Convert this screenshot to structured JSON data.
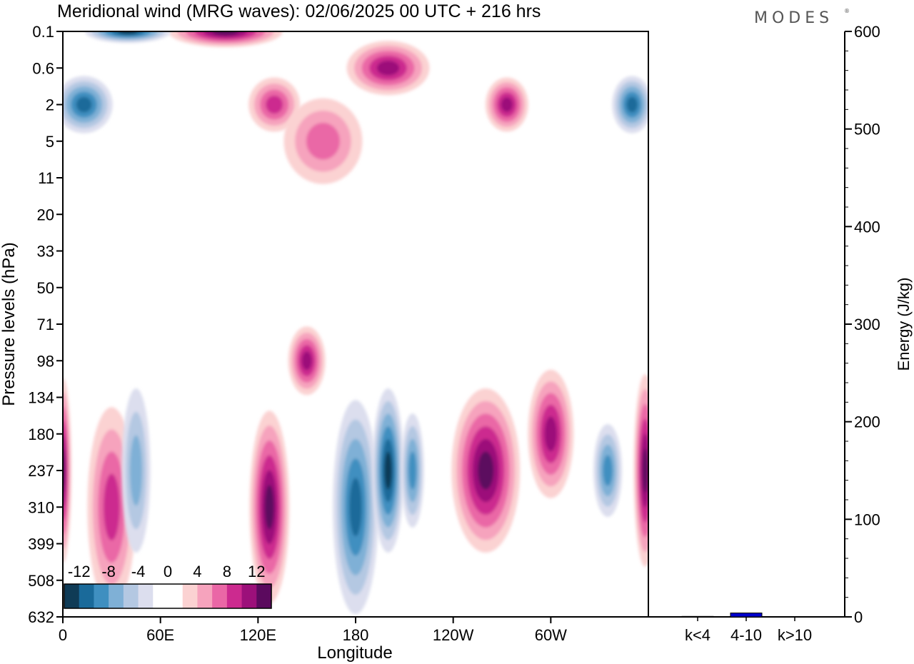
{
  "title": "Meridional wind (MRG waves):  02/06/2025  00 UTC  + 216 hrs",
  "brand": "MODES",
  "brand_mark": "®",
  "chart_data": [
    {
      "type": "heatmap",
      "title": "Meridional wind (MRG waves):  02/06/2025  00 UTC  + 216 hrs",
      "xlabel": "Longitude",
      "ylabel": "Pressure levels (hPa)",
      "x_ticks": [
        "0",
        "60E",
        "120E",
        "180",
        "120W",
        "60W"
      ],
      "y_ticks": [
        "0.1",
        "0.6",
        "2",
        "5",
        "11",
        "20",
        "33",
        "50",
        "71",
        "98",
        "134",
        "180",
        "237",
        "310",
        "399",
        "508",
        "632"
      ],
      "legend": {
        "labels": [
          "-12",
          "-8",
          "-4",
          "0",
          "4",
          "8",
          "12"
        ],
        "colors": [
          "#0f3b56",
          "#1a6a9a",
          "#3f8fc0",
          "#7fb0d6",
          "#b4c8e2",
          "#dcdeee",
          "#ffffff",
          "#ffffff",
          "#fbd2d2",
          "#f6a3bd",
          "#ea67a6",
          "#cc2a8f",
          "#9c107a",
          "#5b0a5e"
        ]
      },
      "features": [
        {
          "lon": 150,
          "level": "98",
          "value": 9
        },
        {
          "lon": 180,
          "level": "310",
          "value": -10
        },
        {
          "lon": 200,
          "level": "237",
          "value": -12
        },
        {
          "lon": 260,
          "level": "237",
          "value": 11
        },
        {
          "lon": 300,
          "level": "180",
          "value": 9
        },
        {
          "lon": 335,
          "level": "237",
          "value": -8
        },
        {
          "lon": 358,
          "level": "237",
          "value": 12
        },
        {
          "lon": 0,
          "level": "237",
          "value": 12
        },
        {
          "lon": 30,
          "level": "310",
          "value": 7
        },
        {
          "lon": 45,
          "level": "237",
          "value": -6
        },
        {
          "lon": 127,
          "level": "310",
          "value": 11
        },
        {
          "lon": 215,
          "level": "237",
          "value": -7
        },
        {
          "lon": 100,
          "level": "0.1",
          "value": 12
        },
        {
          "lon": 40,
          "level": "0.1",
          "value": -12
        },
        {
          "lon": 13,
          "level": "2",
          "value": -9
        },
        {
          "lon": 350,
          "level": "2",
          "value": -9
        },
        {
          "lon": 200,
          "level": "0.6",
          "value": 9
        },
        {
          "lon": 273,
          "level": "2",
          "value": 10
        },
        {
          "lon": 130,
          "level": "2",
          "value": 7
        },
        {
          "lon": 160,
          "level": "5",
          "value": 6
        }
      ]
    },
    {
      "type": "bar",
      "ylabel": "Energy (J/kg)",
      "categories": [
        "k<4",
        "4-10",
        "k>10"
      ],
      "values": [
        0.5,
        4,
        0
      ],
      "ylim": [
        0,
        600
      ],
      "y_ticks": [
        "0",
        "100",
        "200",
        "300",
        "400",
        "500",
        "600"
      ],
      "colors": [
        "#000080",
        "#0000cc",
        "#0000cc"
      ]
    }
  ]
}
